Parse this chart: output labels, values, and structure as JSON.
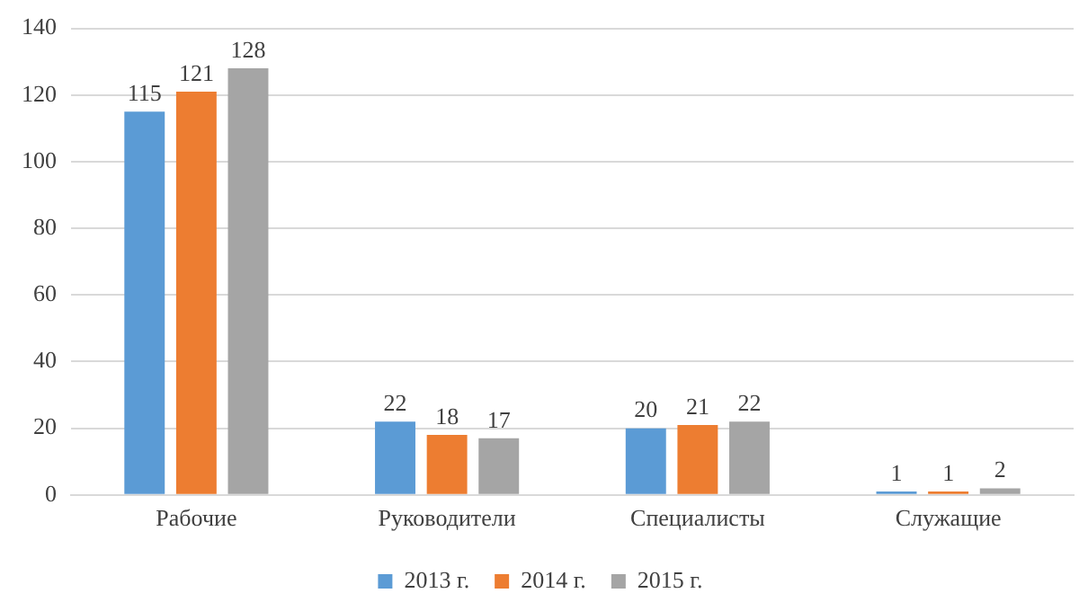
{
  "chart_data": {
    "type": "bar",
    "categories": [
      "Рабочие",
      "Руководители",
      "Специалисты",
      "Служащие"
    ],
    "series": [
      {
        "name": "2013 г.",
        "color": "#5b9bd5",
        "values": [
          115,
          22,
          20,
          1
        ]
      },
      {
        "name": "2014 г.",
        "color": "#ed7d31",
        "values": [
          121,
          18,
          21,
          1
        ]
      },
      {
        "name": "2015 г.",
        "color": "#a5a5a5",
        "values": [
          128,
          17,
          22,
          2
        ]
      }
    ],
    "ylim": [
      0,
      140
    ],
    "yticks": [
      0,
      20,
      40,
      60,
      80,
      100,
      120,
      140
    ],
    "grid": "y",
    "legend": "bottom",
    "data_labels": true
  }
}
